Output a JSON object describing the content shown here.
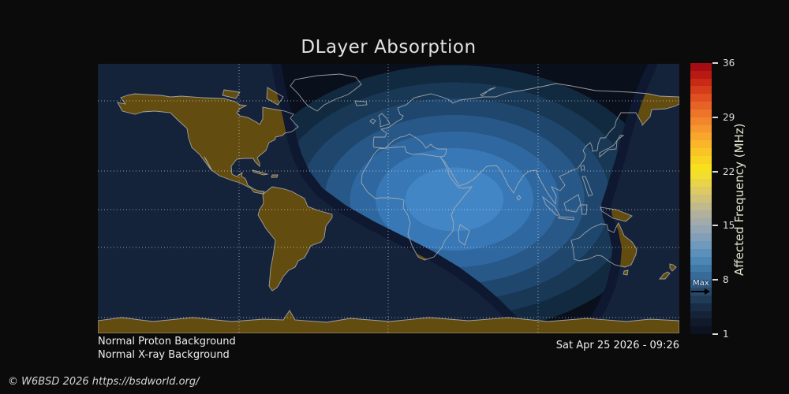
{
  "title": "DLayer Absorption",
  "conditions": {
    "proton": "Normal Proton Background",
    "xray": "Normal X-ray Background"
  },
  "timestamp": "Sat Apr 25 2026 - 09:26",
  "copyright": "© W6BSD 2026 https://bsdworld.org/",
  "colorbar": {
    "label": "Affected Frequency (MHz)",
    "ticks_top_to_bottom": [
      "36",
      "29",
      "22",
      "15",
      "8",
      "1"
    ],
    "max_label": "Max",
    "colors_top_to_bottom": [
      "#a30d13",
      "#b81a12",
      "#c82a15",
      "#d53c1a",
      "#df4f20",
      "#e76226",
      "#ee742a",
      "#f3862d",
      "#f6972e",
      "#f8a72c",
      "#f9b629",
      "#f9c526",
      "#f8d322",
      "#f7e01e",
      "#f2de2e",
      "#e9d447",
      "#ddca61",
      "#cfc178",
      "#c0b98c",
      "#b1b09c",
      "#a3abaa",
      "#93a5b2",
      "#839fb8",
      "#6f9abc",
      "#5c90ba",
      "#4c86b4",
      "#4079a8",
      "#376b98",
      "#2f5a82",
      "#27496c",
      "#203b58",
      "#1a2d46",
      "#152338",
      "#101a2b",
      "#0c1320"
    ]
  },
  "map": {
    "colors": {
      "night": "#15233a",
      "preterm": "#0e1830",
      "term": "#0a0f1c",
      "r1": "#122a40",
      "r2": "#183855",
      "r3": "#1f476e",
      "r4": "#275888",
      "r5": "#2f68a0",
      "r6": "#3878b6",
      "r7": "#4386c5",
      "land": "#634c10",
      "coast": "#b3b3b3",
      "grid": "rgba(255,255,255,0.55)"
    }
  },
  "chart_data": {
    "type": "heatmap",
    "title": "DLayer Absorption",
    "projection": "equirectangular world map",
    "colorbar_label": "Affected Frequency (MHz)",
    "colorbar_ticks": [
      1,
      8,
      15,
      22,
      29,
      36
    ],
    "colorbar_range": [
      1,
      36
    ],
    "legend_position": "right",
    "grid": true,
    "max_marker_value_mhz": 7.5,
    "day_region_center": "North-East Africa / Arabian Peninsula",
    "absorption_levels_mhz_outer_to_inner": [
      1,
      2,
      3,
      4,
      5,
      6,
      7,
      8
    ],
    "annotations": [
      "Normal Proton Background",
      "Normal X-ray Background",
      "Sat Apr 25 2026 - 09:26",
      "© W6BSD 2026 https://bsdworld.org/",
      "Max"
    ]
  }
}
